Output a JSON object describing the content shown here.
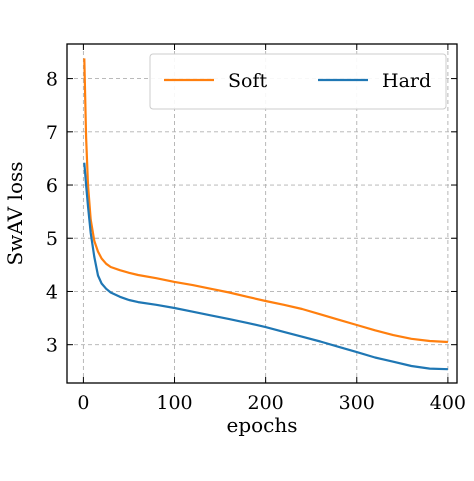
{
  "chart_data": {
    "type": "line",
    "xlabel": "epochs",
    "ylabel": "SwAV loss",
    "xlim": [
      -18,
      410
    ],
    "ylim": [
      2.28,
      8.65
    ],
    "xticks": [
      0,
      100,
      200,
      300,
      400
    ],
    "yticks": [
      3,
      4,
      5,
      6,
      7,
      8
    ],
    "xtick_labels": [
      "0",
      "100",
      "200",
      "300",
      "400"
    ],
    "ytick_labels": [
      "3",
      "4",
      "5",
      "6",
      "7",
      "8"
    ],
    "grid": true,
    "legend_position": "top-right",
    "series": [
      {
        "name": "Soft",
        "color": "#ff7f0e",
        "x": [
          1,
          3,
          5,
          8,
          12,
          16,
          20,
          25,
          30,
          40,
          50,
          60,
          80,
          100,
          120,
          140,
          160,
          180,
          200,
          220,
          240,
          260,
          280,
          300,
          320,
          340,
          360,
          380,
          400
        ],
        "y": [
          8.38,
          6.9,
          6.0,
          5.35,
          4.95,
          4.75,
          4.62,
          4.52,
          4.46,
          4.4,
          4.35,
          4.31,
          4.25,
          4.18,
          4.12,
          4.05,
          3.98,
          3.9,
          3.82,
          3.75,
          3.67,
          3.57,
          3.47,
          3.37,
          3.27,
          3.18,
          3.11,
          3.07,
          3.05
        ]
      },
      {
        "name": "Hard",
        "color": "#1f77b4",
        "x": [
          1,
          3,
          5,
          8,
          12,
          16,
          20,
          25,
          30,
          40,
          50,
          60,
          80,
          100,
          120,
          140,
          160,
          180,
          200,
          220,
          240,
          260,
          280,
          300,
          320,
          340,
          360,
          380,
          400
        ],
        "y": [
          6.42,
          6.0,
          5.6,
          5.1,
          4.65,
          4.3,
          4.15,
          4.05,
          3.98,
          3.9,
          3.84,
          3.8,
          3.75,
          3.69,
          3.62,
          3.55,
          3.48,
          3.41,
          3.33,
          3.24,
          3.15,
          3.06,
          2.96,
          2.86,
          2.76,
          2.68,
          2.6,
          2.55,
          2.54
        ]
      }
    ]
  }
}
